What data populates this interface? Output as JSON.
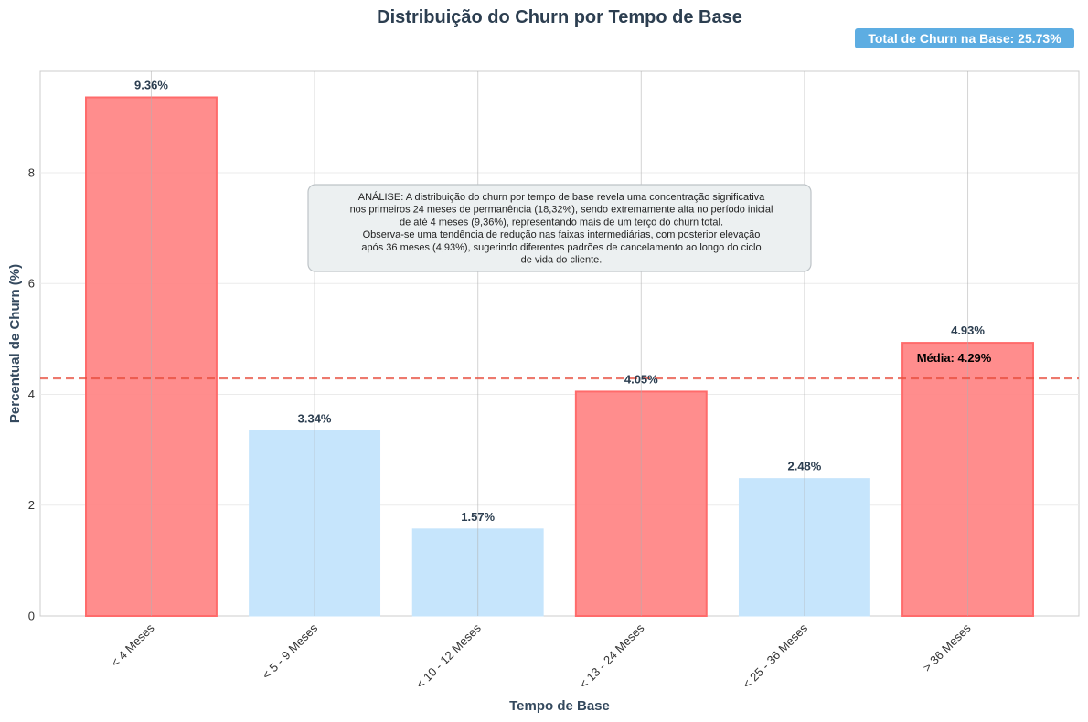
{
  "chart_data": {
    "type": "bar",
    "title": "Distribuição do Churn por Tempo de Base",
    "xlabel": "Tempo de Base",
    "ylabel": "Percentual de Churn (%)",
    "categories": [
      "< 4 Meses",
      "< 5 - 9 Meses",
      "< 10 - 12 Meses",
      "< 13 - 24 Meses",
      "< 25 - 36 Meses",
      "> 36 Meses"
    ],
    "values": [
      9.36,
      3.34,
      1.57,
      4.05,
      2.48,
      4.93
    ],
    "value_labels": [
      "9.36%",
      "3.34%",
      "1.57%",
      "4.05%",
      "2.48%",
      "4.93%"
    ],
    "highlighted": [
      true,
      false,
      false,
      true,
      false,
      true
    ],
    "ylim": [
      0,
      9.83
    ],
    "yticks": [
      0,
      2,
      4,
      6,
      8
    ],
    "grid": true,
    "mean_line": {
      "value": 4.29,
      "label": "Média: 4.29%"
    },
    "badge": "Total de Churn na Base: 25.73%",
    "annotation": [
      "ANÁLISE: A distribuição do churn por tempo de base revela uma concentração significativa",
      "nos primeiros 24 meses de permanência (18,32%), sendo extremamente alta no período inicial",
      "de até 4 meses (9,36%), representando mais de um terço do churn total.",
      "Observa-se uma tendência de redução nas faixas intermediárias, com posterior elevação",
      "após 36 meses (4,93%), sugerindo diferentes padrões de cancelamento ao longo do ciclo",
      "de vida do cliente."
    ],
    "colors": {
      "highlight": "#ff8787",
      "highlight_edge": "#ff6b6b",
      "normal": "#c6e5fc",
      "mean_line": "#e74c3c",
      "badge_bg": "#5dade2",
      "note_bg": "#ecf0f1",
      "note_border": "#bdc3c7"
    }
  }
}
